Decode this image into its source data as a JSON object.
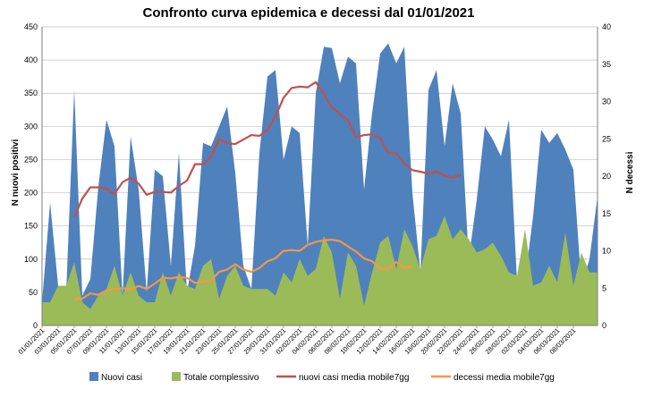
{
  "chart_data": {
    "type": "area",
    "title": "Confronto curva epidemica e decessi  dal 01/01/2021",
    "ylabel": "N nuovi positivi",
    "y2label": "N decessi",
    "ylim": [
      0,
      450
    ],
    "y2lim": [
      0,
      40
    ],
    "yticks": [
      0,
      50,
      100,
      150,
      200,
      250,
      300,
      350,
      400,
      450
    ],
    "y2ticks": [
      0,
      5,
      10,
      15,
      20,
      25,
      30,
      35,
      40
    ],
    "grid": true,
    "legend_position": "bottom",
    "x_labels": [
      "01/01/2021",
      "03/01/2021",
      "05/01/2021",
      "07/01/2021",
      "09/01/2021",
      "11/01/2021",
      "13/01/2021",
      "15/01/2021",
      "17/01/2021",
      "19/01/2021",
      "21/01/2021",
      "23/01/2021",
      "25/01/2021",
      "27/01/2021",
      "29/01/2021",
      "31/01/2021",
      "02/02/2021",
      "04/02/2021",
      "06/02/2021",
      "08/02/2021",
      "10/02/2021",
      "12/02/2021",
      "14/02/2021",
      "16/02/2021",
      "18/02/2021",
      "20/02/2021",
      "22/02/2021",
      "24/02/2021",
      "26/02/2021",
      "28/02/2021",
      "02/03/2021",
      "04/03/2021",
      "06/03/2021",
      "08/03/2021"
    ],
    "series": [
      {
        "name": "Nuovi casi",
        "kind": "area",
        "axis": "left",
        "color": "#4f81bd",
        "values": [
          35,
          185,
          60,
          50,
          355,
          45,
          70,
          210,
          310,
          270,
          45,
          285,
          205,
          50,
          235,
          225,
          90,
          260,
          50,
          120,
          275,
          270,
          300,
          330,
          230,
          90,
          55,
          260,
          375,
          385,
          250,
          300,
          290,
          120,
          350,
          420,
          418,
          365,
          405,
          395,
          205,
          320,
          410,
          425,
          395,
          420,
          200,
          80,
          355,
          385,
          270,
          365,
          320,
          100,
          190,
          300,
          280,
          255,
          310,
          65,
          70,
          165,
          295,
          275,
          290,
          265,
          235,
          60,
          100,
          195
        ]
      },
      {
        "name": "Totale complessivo",
        "kind": "area",
        "axis": "left",
        "color": "#9bbb59",
        "values": [
          35,
          35,
          60,
          60,
          95,
          35,
          25,
          45,
          55,
          90,
          45,
          80,
          45,
          35,
          35,
          80,
          45,
          80,
          60,
          55,
          90,
          100,
          40,
          75,
          90,
          60,
          55,
          55,
          55,
          45,
          80,
          65,
          100,
          75,
          85,
          135,
          110,
          40,
          110,
          90,
          30,
          80,
          125,
          135,
          85,
          145,
          120,
          85,
          130,
          135,
          165,
          130,
          145,
          130,
          110,
          115,
          125,
          105,
          80,
          75,
          145,
          60,
          65,
          90,
          65,
          140,
          60,
          110,
          80,
          80
        ]
      },
      {
        "name": "nuovi casi media mobile7gg",
        "kind": "line",
        "axis": "right",
        "color": "#c0504d",
        "start_index": 4,
        "values": [
          14.5,
          17,
          18.5,
          18.5,
          18.3,
          17.6,
          19.2,
          19.8,
          19,
          17.5,
          17.9,
          17.9,
          17.8,
          18.7,
          19.4,
          21.6,
          21.6,
          22.6,
          25,
          24.4,
          24.3,
          24.9,
          25.5,
          25.4,
          26.2,
          28,
          30.5,
          31.8,
          32,
          31.9,
          32.6,
          31,
          29.2,
          28.3,
          27.5,
          25.2,
          25.5,
          25.6,
          25.1,
          23.1,
          23.1,
          21.7,
          20.8,
          20.6,
          20.3,
          20.6,
          20.1,
          19.8,
          20.2
        ]
      },
      {
        "name": "decessi media mobile7gg",
        "kind": "line",
        "axis": "right",
        "color": "#f79646",
        "start_index": 4,
        "values": [
          3.5,
          3.6,
          4.3,
          4.1,
          4.7,
          4.9,
          5,
          4.8,
          5.3,
          4.9,
          5.6,
          6.4,
          6.3,
          6.5,
          6.4,
          5.7,
          5.9,
          6,
          7.2,
          7.5,
          8.2,
          7.5,
          7.2,
          7.7,
          8.6,
          9,
          10,
          10.1,
          10,
          10.8,
          11.2,
          11.4,
          11.5,
          11.3,
          10.6,
          9.9,
          9,
          8.6,
          7.6,
          7.6,
          8.5,
          7.7,
          7.9
        ]
      }
    ]
  }
}
